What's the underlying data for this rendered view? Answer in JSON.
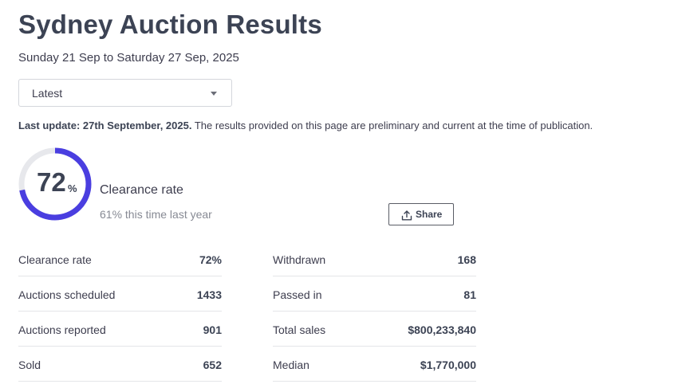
{
  "header": {
    "title": "Sydney Auction Results",
    "date_range": "Sunday 21 Sep to Saturday 27 Sep, 2025"
  },
  "filter": {
    "selected": "Latest",
    "icon": "chevron-down-icon"
  },
  "update": {
    "bold": "Last update: 27th September, 2025.",
    "text": " The results provided on this page are preliminary and current at the time of publication."
  },
  "clearance": {
    "value": "72",
    "unit": "%",
    "fraction": 0.72,
    "label": "Clearance rate",
    "last_year": "61% this time last year",
    "ring_color": "#4a3ee0",
    "track_color": "#e7e8ec"
  },
  "share": {
    "label": "Share",
    "icon": "share-icon"
  },
  "stats_left": [
    {
      "label": "Clearance rate",
      "value": "72%"
    },
    {
      "label": "Auctions scheduled",
      "value": "1433"
    },
    {
      "label": "Auctions reported",
      "value": "901"
    },
    {
      "label": "Sold",
      "value": "652"
    }
  ],
  "stats_right": [
    {
      "label": "Withdrawn",
      "value": "168"
    },
    {
      "label": "Passed in",
      "value": "81"
    },
    {
      "label": "Total sales",
      "value": "$800,233,840"
    },
    {
      "label": "Median",
      "value": "$1,770,000"
    }
  ]
}
